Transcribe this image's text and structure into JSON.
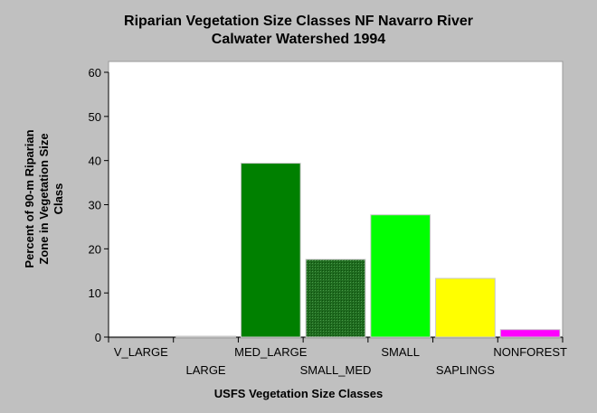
{
  "chart_data": {
    "type": "bar",
    "title_lines": [
      "Riparian Vegetation Size Classes NF Navarro River",
      "Calwater Watershed 1994"
    ],
    "ylabel_lines": [
      "Percent of 90-m Riparian",
      "Zone in Vegetation Size",
      "Class"
    ],
    "xlabel": "USFS Vegetation Size Classes",
    "categories": [
      "V_LARGE",
      "LARGE",
      "MED_LARGE",
      "SMALL_MED",
      "SMALL",
      "SAPLINGS",
      "NONFOREST"
    ],
    "values": [
      0,
      0.2,
      39.4,
      17.6,
      27.7,
      13.3,
      1.7
    ],
    "colors": [
      "#006400",
      "#006400",
      "#008000",
      "#2e7d2e",
      "#00ff00",
      "#ffff00",
      "#ff00ff"
    ],
    "ylim": [
      0,
      60
    ],
    "yticks": [
      0,
      10,
      20,
      30,
      40,
      50,
      60
    ],
    "grid": false,
    "legend": "none"
  }
}
